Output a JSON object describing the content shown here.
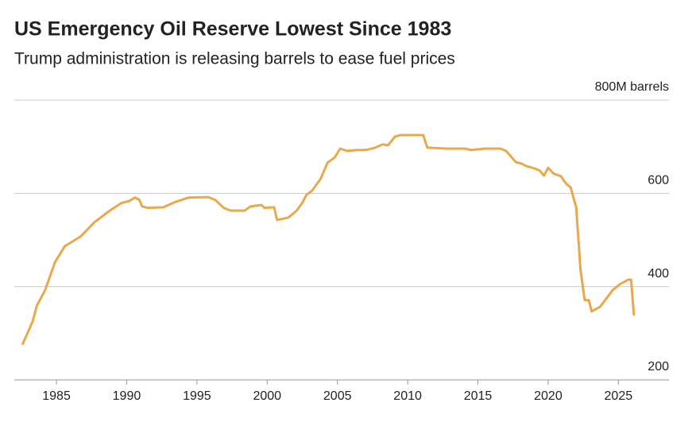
{
  "chart_data": {
    "type": "line",
    "title": "US Emergency Oil Reserve Lowest Since 1983",
    "subtitle": "Trump administration is releasing barrels to ease fuel prices",
    "x": [
      1982.6,
      1983.3,
      1983.6,
      1984.2,
      1984.9,
      1985.6,
      1986.7,
      1987.7,
      1988.8,
      1989.6,
      1990.2,
      1990.6,
      1990.9,
      1991.1,
      1991.5,
      1992.6,
      1993.5,
      1994.4,
      1995.8,
      1996.3,
      1996.9,
      1997.4,
      1998.4,
      1998.8,
      1999.6,
      1999.8,
      2000.5,
      2000.7,
      2001.5,
      2002.1,
      2002.5,
      2002.8,
      2003.2,
      2003.8,
      2004.3,
      2004.8,
      2005.2,
      2005.7,
      2006.4,
      2007.0,
      2007.7,
      2008.2,
      2008.6,
      2009.1,
      2009.5,
      2011.1,
      2011.4,
      2012.7,
      2014.1,
      2014.5,
      2015.5,
      2016.6,
      2017.0,
      2017.7,
      2018.1,
      2018.4,
      2019.0,
      2019.4,
      2019.7,
      2020.0,
      2020.4,
      2020.9,
      2021.3,
      2021.6,
      2022.0,
      2022.3,
      2022.6,
      2022.9,
      2023.1,
      2023.7,
      2024.6,
      2025.1,
      2025.7,
      2025.9,
      2026.1
    ],
    "series": [
      {
        "color": "#e9a84c",
        "values": [
          277,
          325,
          359,
          393,
          453,
          487,
          507,
          538,
          563,
          579,
          584,
          591,
          586,
          572,
          569,
          570,
          582,
          591,
          592,
          586,
          569,
          563,
          563,
          572,
          575,
          569,
          570,
          543,
          548,
          563,
          580,
          597,
          606,
          631,
          666,
          677,
          696,
          691,
          693,
          693,
          698,
          705,
          703,
          722,
          725,
          725,
          698,
          696,
          696,
          693,
          696,
          696,
          691,
          667,
          664,
          659,
          654,
          649,
          638,
          655,
          642,
          637,
          620,
          613,
          569,
          436,
          371,
          371,
          347,
          357,
          393,
          405,
          415,
          415,
          340
        ]
      }
    ],
    "xlim": [
      1982,
      2028.6
    ],
    "xticks": [
      1985,
      1990,
      1995,
      2000,
      2005,
      2010,
      2015,
      2020,
      2025
    ],
    "ylim": [
      200,
      800
    ],
    "yticks": [
      200,
      400,
      600,
      {
        "value": 800,
        "label": "800M barrels"
      }
    ],
    "grid": true
  }
}
